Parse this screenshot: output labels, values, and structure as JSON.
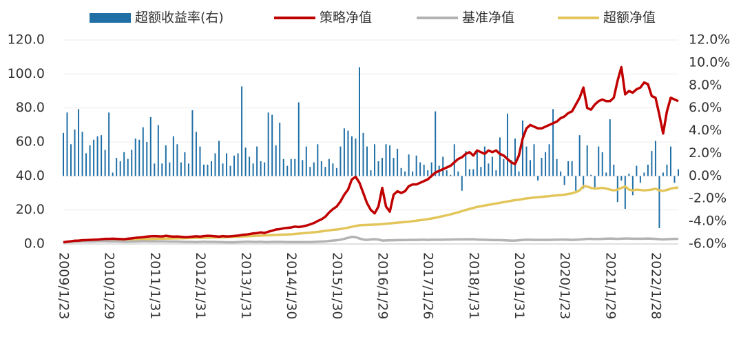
{
  "chart_data": {
    "type": "combo",
    "categories": [
      "2009/1/23",
      null,
      null,
      null,
      null,
      null,
      null,
      null,
      null,
      null,
      null,
      null,
      "2010/1/29",
      null,
      null,
      null,
      null,
      null,
      null,
      null,
      null,
      null,
      null,
      null,
      "2011/1/31",
      null,
      null,
      null,
      null,
      null,
      null,
      null,
      null,
      null,
      null,
      null,
      "2012/1/31",
      null,
      null,
      null,
      null,
      null,
      null,
      null,
      null,
      null,
      null,
      null,
      "2013/1/31",
      null,
      null,
      null,
      null,
      null,
      null,
      null,
      null,
      null,
      null,
      null,
      "2014/1/30",
      null,
      null,
      null,
      null,
      null,
      null,
      null,
      null,
      null,
      null,
      null,
      "2015/1/30",
      null,
      null,
      null,
      null,
      null,
      null,
      null,
      null,
      null,
      null,
      null,
      "2016/1/29",
      null,
      null,
      null,
      null,
      null,
      null,
      null,
      null,
      null,
      null,
      null,
      "2017/1/26",
      null,
      null,
      null,
      null,
      null,
      null,
      null,
      null,
      null,
      null,
      null,
      "2018/1/31",
      null,
      null,
      null,
      null,
      null,
      null,
      null,
      null,
      null,
      null,
      null,
      "2019/1/31",
      null,
      null,
      null,
      null,
      null,
      null,
      null,
      null,
      null,
      null,
      null,
      "2020/1/23",
      null,
      null,
      null,
      null,
      null,
      null,
      null,
      null,
      null,
      null,
      null,
      "2021/1/29",
      null,
      null,
      null,
      null,
      null,
      null,
      null,
      null,
      null,
      null,
      null,
      "2022/1/28",
      null,
      null,
      null,
      null,
      null,
      null
    ],
    "series": [
      {
        "name": "超额收益率(右)",
        "type": "bar",
        "axis": "y2",
        "color": "#1f6fa6",
        "values": [
          3.8,
          5.6,
          2.8,
          4.1,
          5.9,
          3.9,
          2.0,
          2.7,
          3.2,
          3.5,
          3.6,
          2.3,
          5.6,
          0.3,
          1.6,
          1.3,
          2.1,
          1.5,
          2.3,
          3.3,
          3.2,
          4.3,
          3.0,
          5.2,
          1.1,
          4.5,
          1.1,
          2.7,
          1.2,
          3.5,
          2.8,
          1.2,
          2.1,
          1.1,
          5.8,
          3.9,
          2.6,
          1.0,
          1.0,
          1.3,
          2.0,
          3.1,
          1.1,
          2.0,
          0.9,
          1.8,
          2.0,
          7.9,
          2.5,
          1.7,
          1.1,
          2.6,
          1.3,
          1.2,
          5.6,
          5.4,
          2.7,
          4.7,
          1.5,
          0.9,
          1.5,
          1.5,
          6.5,
          1.4,
          2.6,
          0.8,
          1.2,
          2.8,
          1.3,
          0.8,
          1.5,
          1.1,
          0.7,
          2.6,
          4.2,
          4.0,
          3.5,
          3.3,
          9.6,
          3.8,
          2.6,
          0.5,
          2.8,
          1.3,
          1.6,
          2.8,
          2.7,
          1.6,
          2.4,
          0.7,
          0.4,
          1.9,
          0.4,
          1.8,
          1.2,
          1.0,
          0.5,
          1.2,
          5.7,
          0.9,
          1.7,
          0.5,
          0.1,
          2.8,
          0.4,
          -1.3,
          2.2,
          0.6,
          0.6,
          2.3,
          0.8,
          2.6,
          1.1,
          1.7,
          0.5,
          3.4,
          1.5,
          5.5,
          1.4,
          3.3,
          0.4,
          4.9,
          2.6,
          1.4,
          2.8,
          -0.4,
          1.6,
          2.1,
          2.8,
          5.9,
          1.5,
          0.4,
          -0.8,
          1.3,
          1.3,
          -1.3,
          3.6,
          -1.1,
          2.7,
          0.1,
          -1.0,
          2.6,
          2.1,
          0.3,
          5.0,
          1.0,
          -2.3,
          -0.4,
          -2.9,
          0.2,
          -1.7,
          0.9,
          -0.6,
          0.3,
          1.0,
          2.2,
          3.1,
          -4.6,
          0.3,
          1.0,
          2.6,
          -0.6,
          0.6
        ]
      },
      {
        "name": "策略净值",
        "type": "line",
        "color": "#c00000",
        "values": [
          1.0,
          1.3,
          1.6,
          1.9,
          2.0,
          2.2,
          2.3,
          2.4,
          2.5,
          2.6,
          2.8,
          3.0,
          3.0,
          3.1,
          3.0,
          2.9,
          2.8,
          3.1,
          3.3,
          3.6,
          3.8,
          4.0,
          4.3,
          4.5,
          4.6,
          4.5,
          4.4,
          4.8,
          4.5,
          4.3,
          4.4,
          4.2,
          4.0,
          4.1,
          4.3,
          4.5,
          4.3,
          4.6,
          4.8,
          4.7,
          4.5,
          4.3,
          4.6,
          4.4,
          4.5,
          4.7,
          4.9,
          5.3,
          5.5,
          5.8,
          6.2,
          6.4,
          6.8,
          6.5,
          7.2,
          7.8,
          8.5,
          8.7,
          9.2,
          9.5,
          9.7,
          10.2,
          10.0,
          10.3,
          10.8,
          11.5,
          12.3,
          13.5,
          14.5,
          16.0,
          18.5,
          20.5,
          22,
          25,
          29,
          32,
          38,
          39.5,
          36,
          30,
          24,
          20,
          18,
          22,
          33,
          22,
          19,
          29,
          31,
          30,
          31,
          34,
          35,
          35,
          36,
          37,
          38,
          40,
          42,
          43,
          44,
          45,
          46,
          48,
          50,
          51,
          53,
          54,
          52,
          55,
          54,
          53,
          55,
          54,
          55,
          53,
          52,
          50,
          48,
          47,
          52,
          62,
          68,
          70,
          69,
          68,
          68,
          69,
          70,
          71,
          72,
          74,
          75,
          77,
          78,
          82,
          86,
          92,
          80,
          79,
          82,
          84,
          85,
          84,
          84,
          86,
          96,
          104,
          88,
          90,
          89,
          91,
          92,
          95,
          94,
          87,
          86,
          76,
          65,
          78,
          86,
          85,
          84
        ]
      },
      {
        "name": "基准净值",
        "type": "line",
        "color": "#b3b3b3",
        "values": [
          1.0,
          1.1,
          1.2,
          1.3,
          1.4,
          1.5,
          1.5,
          1.4,
          1.5,
          1.6,
          1.6,
          1.6,
          1.5,
          1.5,
          1.5,
          1.4,
          1.3,
          1.3,
          1.4,
          1.4,
          1.5,
          1.6,
          1.5,
          1.5,
          1.5,
          1.5,
          1.5,
          1.5,
          1.4,
          1.4,
          1.4,
          1.3,
          1.2,
          1.2,
          1.2,
          1.1,
          1.2,
          1.3,
          1.2,
          1.2,
          1.2,
          1.1,
          1.1,
          1.0,
          1.0,
          1.0,
          1.1,
          1.2,
          1.3,
          1.3,
          1.2,
          1.2,
          1.3,
          1.1,
          1.1,
          1.2,
          1.2,
          1.2,
          1.2,
          1.1,
          1.1,
          1.1,
          1.1,
          1.1,
          1.1,
          1.1,
          1.2,
          1.3,
          1.4,
          1.5,
          1.8,
          2.0,
          2.2,
          2.5,
          3.0,
          3.6,
          4.2,
          4.0,
          3.2,
          2.6,
          2.4,
          2.7,
          2.8,
          2.6,
          2.0,
          2.1,
          2.2,
          2.2,
          2.3,
          2.3,
          2.3,
          2.4,
          2.4,
          2.4,
          2.5,
          2.5,
          2.4,
          2.5,
          2.5,
          2.5,
          2.5,
          2.6,
          2.6,
          2.7,
          2.7,
          2.7,
          2.8,
          2.7,
          2.8,
          2.6,
          2.5,
          2.5,
          2.4,
          2.3,
          2.3,
          2.3,
          2.2,
          2.1,
          2.0,
          2.0,
          2.2,
          2.4,
          2.5,
          2.5,
          2.4,
          2.4,
          2.4,
          2.4,
          2.4,
          2.5,
          2.5,
          2.6,
          2.6,
          2.5,
          2.4,
          2.5,
          2.6,
          2.8,
          3.0,
          3.0,
          2.9,
          2.9,
          3.0,
          3.1,
          3.2,
          3.1,
          3.0,
          3.1,
          3.2,
          3.2,
          3.1,
          3.1,
          3.1,
          3.1,
          3.2,
          3.1,
          3.0,
          2.8,
          2.7,
          2.8,
          2.9,
          3.0,
          3.0
        ]
      },
      {
        "name": "超额净值",
        "type": "line",
        "color": "#e3c65b",
        "values": [
          1.0,
          1.1,
          1.2,
          1.3,
          1.4,
          1.5,
          1.6,
          1.7,
          1.8,
          1.9,
          2.0,
          2.1,
          2.2,
          2.3,
          2.3,
          2.4,
          2.5,
          2.5,
          2.6,
          2.7,
          2.7,
          2.8,
          2.9,
          3.0,
          3.0,
          3.1,
          3.1,
          3.2,
          3.2,
          3.3,
          3.3,
          3.4,
          3.4,
          3.5,
          3.5,
          3.6,
          3.6,
          3.7,
          3.7,
          3.8,
          3.8,
          3.9,
          3.9,
          4.0,
          4.1,
          4.2,
          4.3,
          4.4,
          4.5,
          4.6,
          4.7,
          4.8,
          4.9,
          5.0,
          5.1,
          5.2,
          5.3,
          5.4,
          5.5,
          5.6,
          5.7,
          5.9,
          6.1,
          6.3,
          6.5,
          6.7,
          6.9,
          7.1,
          7.4,
          7.7,
          8.0,
          8.3,
          8.5,
          8.8,
          9.2,
          9.6,
          10.1,
          10.6,
          11.0,
          11.1,
          11.2,
          11.3,
          11.4,
          11.5,
          11.7,
          11.9,
          12.1,
          12.3,
          12.5,
          12.7,
          12.9,
          13.1,
          13.4,
          13.7,
          14.0,
          14.3,
          14.6,
          15.0,
          15.4,
          15.9,
          16.4,
          16.9,
          17.4,
          18.0,
          18.6,
          19.3,
          20.0,
          20.6,
          21.2,
          21.8,
          22.2,
          22.6,
          23.0,
          23.4,
          23.8,
          24.2,
          24.6,
          25.0,
          25.4,
          25.8,
          26.0,
          26.4,
          26.8,
          27.0,
          27.3,
          27.5,
          27.7,
          27.9,
          28.1,
          28.4,
          28.6,
          28.8,
          29.0,
          29.4,
          29.8,
          30.5,
          31.5,
          34.0,
          33.8,
          33.0,
          32.5,
          32.8,
          33.0,
          32.6,
          32.0,
          31.5,
          32.0,
          33.0,
          33.8,
          32.0,
          31.5,
          32.0,
          31.8,
          31.5,
          31.7,
          32.0,
          32.5,
          31.5,
          31.2,
          31.8,
          32.5,
          33.0,
          33.2
        ]
      }
    ],
    "ylim": [
      0,
      120
    ],
    "yticks": [
      {
        "value": 0,
        "label": "0.0"
      },
      {
        "value": 20,
        "label": "20.0"
      },
      {
        "value": 40,
        "label": "40.0"
      },
      {
        "value": 60,
        "label": "60.0"
      },
      {
        "value": 80,
        "label": "80.0"
      },
      {
        "value": 100,
        "label": "100.0"
      },
      {
        "value": 120,
        "label": "120.0"
      }
    ],
    "y2lim": [
      -6,
      12
    ],
    "y2ticks": [
      {
        "value": -6,
        "label": "-6.0%"
      },
      {
        "value": -4,
        "label": "-4.0%"
      },
      {
        "value": -2,
        "label": "-2.0%"
      },
      {
        "value": 0,
        "label": "0.0%"
      },
      {
        "value": 2,
        "label": "2.0%"
      },
      {
        "value": 4,
        "label": "4.0%"
      },
      {
        "value": 6,
        "label": "6.0%"
      },
      {
        "value": 8,
        "label": "8.0%"
      },
      {
        "value": 10,
        "label": "10.0%"
      },
      {
        "value": 12,
        "label": "12.0%"
      }
    ],
    "grid": true,
    "legend": "top"
  }
}
